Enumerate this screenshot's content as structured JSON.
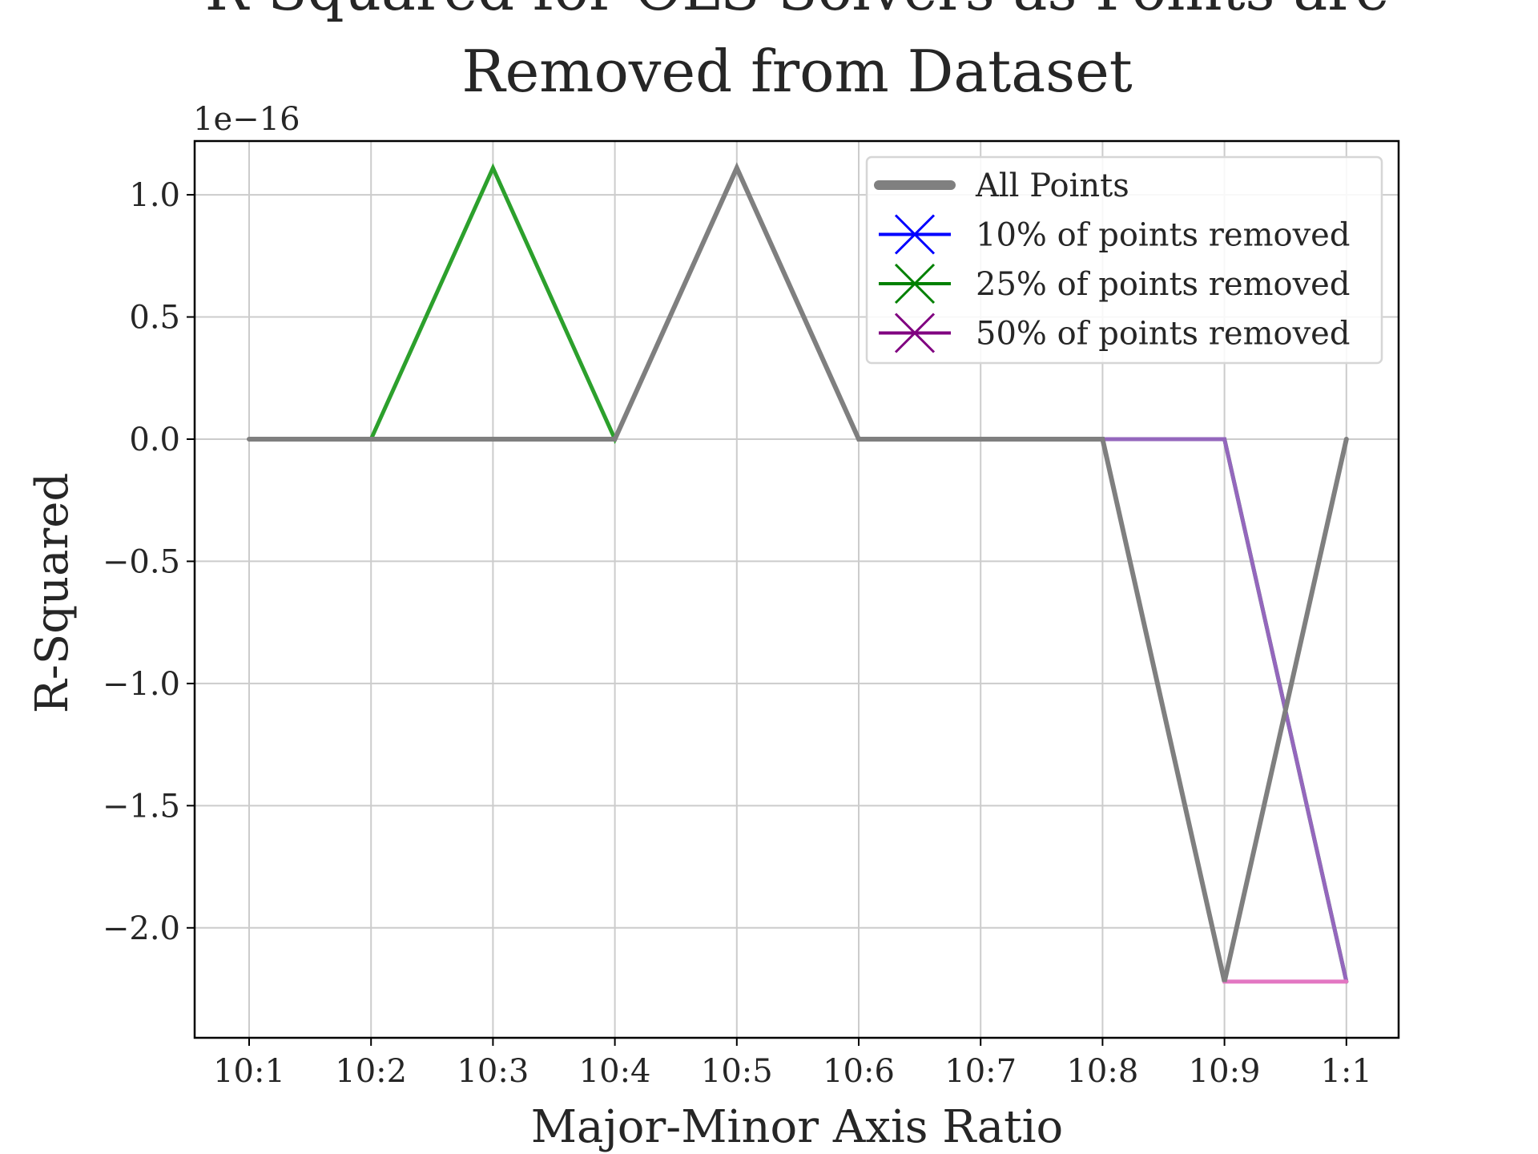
{
  "chart_data": {
    "type": "line",
    "title_lines": [
      "R-Squared for OLS Solvers as Points are",
      "Removed from Dataset"
    ],
    "xlabel": "Major-Minor Axis Ratio",
    "ylabel": "R-Squared",
    "y_offset_label": "1e−16",
    "categories": [
      "10:1",
      "10:2",
      "10:3",
      "10:4",
      "10:5",
      "10:6",
      "10:7",
      "10:8",
      "10:9",
      "1:1"
    ],
    "y_ticks": [
      1.0,
      0.5,
      0.0,
      -0.5,
      -1.0,
      -1.5,
      -2.0
    ],
    "y_tick_labels": [
      "1.0",
      "0.5",
      "0.0",
      "−0.5",
      "−1.0",
      "−1.5",
      "−2.0"
    ],
    "ylim": [
      -2.45,
      1.22
    ],
    "grid": true,
    "legend_position": "top-right",
    "legend": [
      {
        "label": "All Points",
        "color": "#808080",
        "marker": "line"
      },
      {
        "label": "10% of points removed",
        "color": "#0000ff",
        "marker": "x"
      },
      {
        "label": "25% of points removed",
        "color": "#008000",
        "marker": "x"
      },
      {
        "label": "50% of points removed",
        "color": "#800080",
        "marker": "x"
      }
    ],
    "series": [
      {
        "color": "#2ca02c",
        "width": 5,
        "values": [
          0,
          0,
          1.11,
          0,
          1.11,
          0,
          0,
          0,
          0,
          -2.22
        ]
      },
      {
        "color": "#9467bd",
        "width": 5,
        "values": [
          0,
          0,
          0,
          0,
          1.11,
          0,
          0,
          0,
          0,
          -2.22
        ]
      },
      {
        "color": "#e377c2",
        "width": 5,
        "values": [
          0,
          0,
          0,
          0,
          1.11,
          0,
          0,
          0,
          -2.22,
          -2.22
        ]
      },
      {
        "color": "#7f7f7f",
        "width": 6,
        "values": [
          0,
          0,
          0,
          0,
          1.11,
          0,
          0,
          0,
          -2.22,
          0
        ]
      }
    ]
  }
}
